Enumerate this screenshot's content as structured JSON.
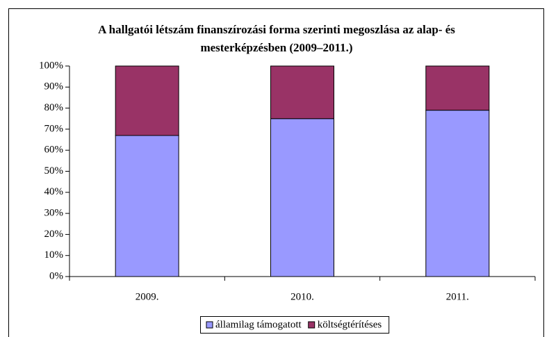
{
  "chart_data": {
    "type": "stacked_bar",
    "title": [
      "A hallgatói létszám finanszírozási forma szerinti megoszlása az alap- és",
      "mesterképzésben (2009–2011.)"
    ],
    "categories": [
      "2009.",
      "2010.",
      "2011."
    ],
    "series": [
      {
        "name": "államilag támogatott",
        "color": "#9999ff",
        "values": [
          67,
          75,
          79
        ]
      },
      {
        "name": "költségtérítéses",
        "color": "#993366",
        "values": [
          33,
          25,
          21
        ]
      }
    ],
    "ylim": [
      0,
      100
    ],
    "yticks": [
      {
        "value": 0,
        "label": "0%"
      },
      {
        "value": 10,
        "label": "10%"
      },
      {
        "value": 20,
        "label": "20%"
      },
      {
        "value": 30,
        "label": "30%"
      },
      {
        "value": 40,
        "label": "40%"
      },
      {
        "value": 50,
        "label": "50%"
      },
      {
        "value": 60,
        "label": "60%"
      },
      {
        "value": 70,
        "label": "70%"
      },
      {
        "value": 80,
        "label": "80%"
      },
      {
        "value": 90,
        "label": "90%"
      },
      {
        "value": 100,
        "label": "100%"
      }
    ],
    "legend": "bottom"
  }
}
